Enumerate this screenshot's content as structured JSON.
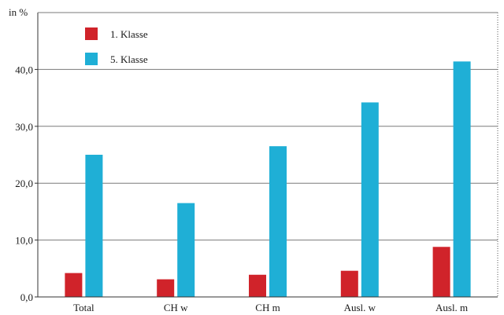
{
  "chart_data": {
    "type": "bar",
    "unit_label": "in %",
    "categories": [
      "Total",
      "CH w",
      "CH m",
      "Ausl. w",
      "Ausl. m"
    ],
    "series": [
      {
        "name": "1. Klasse",
        "color": "#d0232a",
        "values": [
          4.2,
          3.1,
          3.9,
          4.6,
          8.8
        ]
      },
      {
        "name": "5. Klasse",
        "color": "#1fafd6",
        "values": [
          25.0,
          16.5,
          26.5,
          34.2,
          41.4
        ]
      }
    ],
    "ylim": [
      0,
      50
    ],
    "yticks": [
      0,
      10,
      20,
      30,
      40
    ],
    "ytick_labels": [
      "0,0",
      "10,0",
      "20,0",
      "30,0",
      "40,0"
    ],
    "grid": true,
    "legend_position": "top-left"
  }
}
